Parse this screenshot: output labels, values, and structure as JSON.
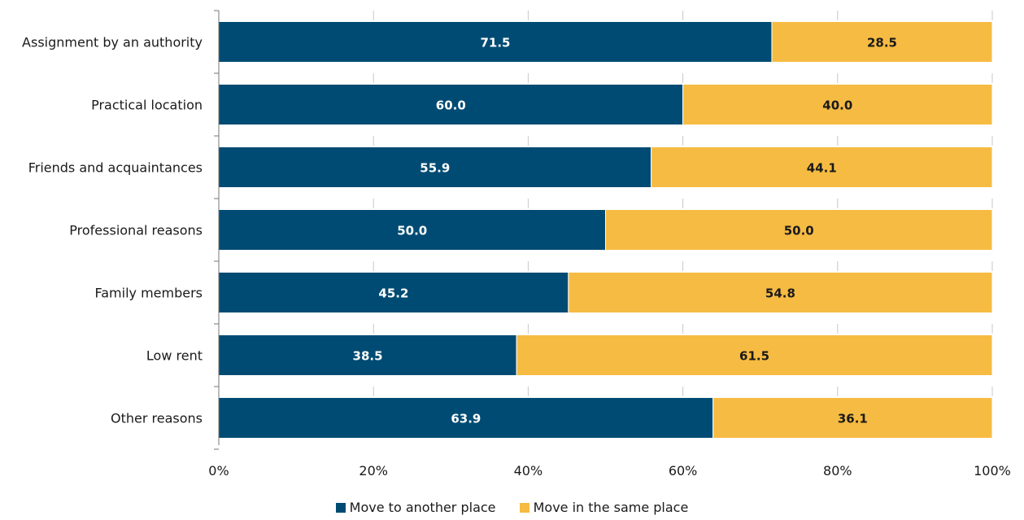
{
  "chart_data": {
    "type": "bar",
    "orientation": "horizontal",
    "stacked": true,
    "categories": [
      "Assignment by an authority",
      "Practical location",
      "Friends and acquaintances",
      "Professional reasons",
      "Family members",
      "Low rent",
      "Other reasons"
    ],
    "series": [
      {
        "name": "Move to another place",
        "color": "#004b73",
        "label_color": "#ffffff",
        "values": [
          71.5,
          60.0,
          55.9,
          50.0,
          45.2,
          38.5,
          63.9
        ]
      },
      {
        "name": "Move in the same place",
        "color": "#f6bb42",
        "label_color": "#1a1a1a",
        "values": [
          28.5,
          40.0,
          44.1,
          50.0,
          54.8,
          61.5,
          36.1
        ]
      }
    ],
    "xlim": [
      0,
      100
    ],
    "xticks": [
      "0%",
      "20%",
      "40%",
      "60%",
      "80%",
      "100%"
    ],
    "grid": "vertical",
    "legend_position": "bottom"
  }
}
